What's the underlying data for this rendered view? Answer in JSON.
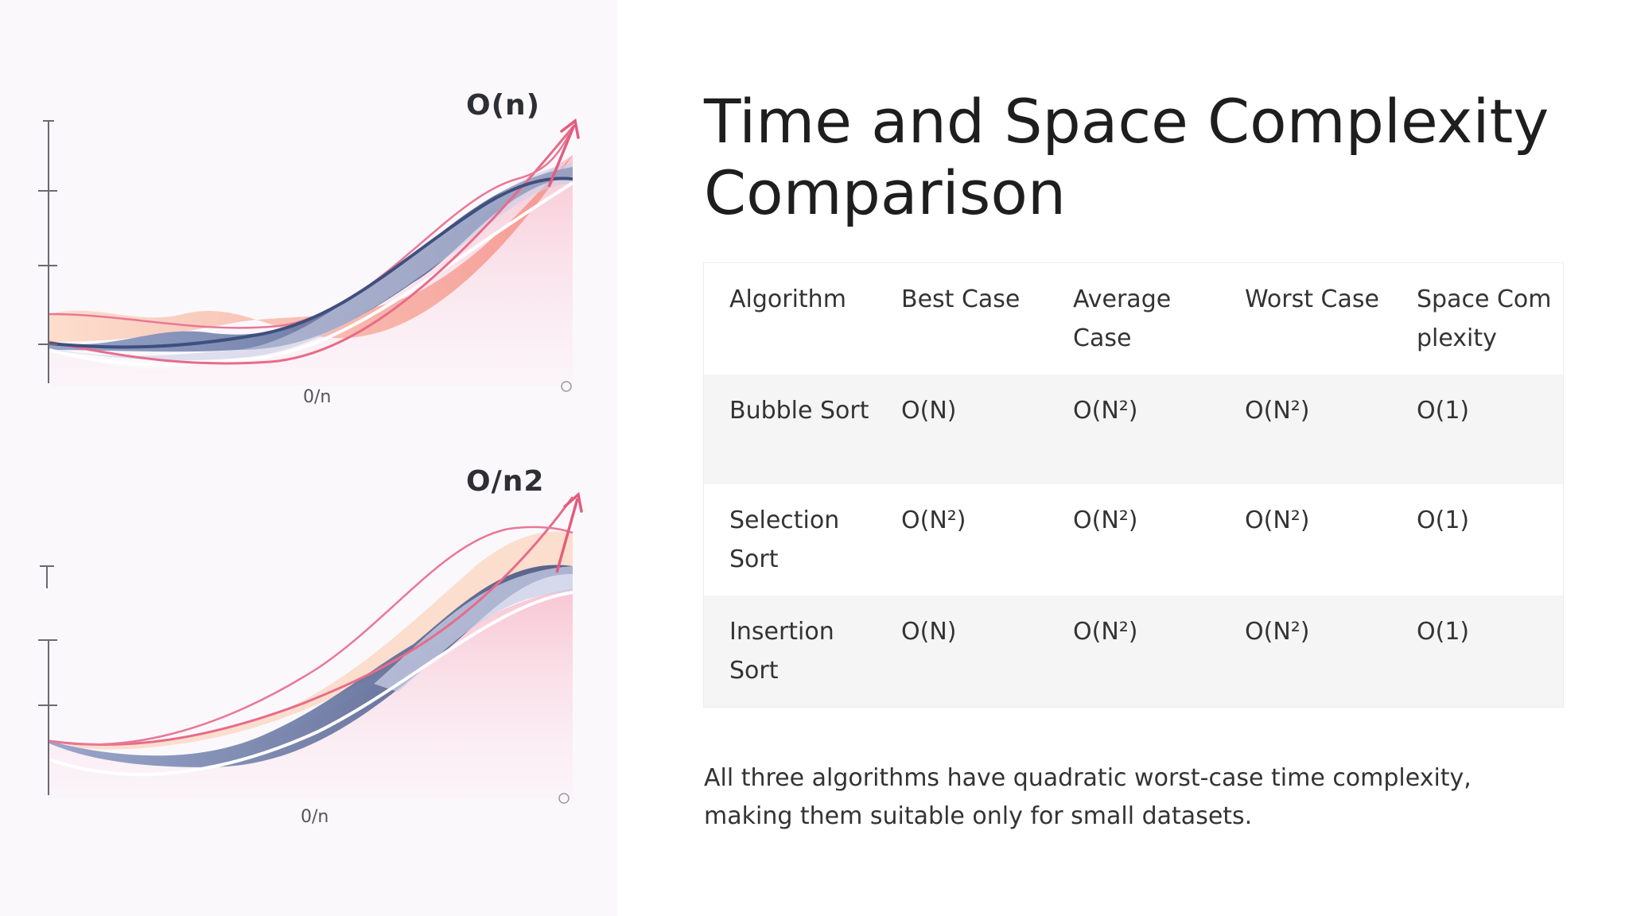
{
  "graphs": {
    "top": {
      "title": "O(n)",
      "xlabel": "0/n"
    },
    "bottom": {
      "title": "O/n2",
      "xlabel": "0/n"
    }
  },
  "slide": {
    "title": "Time and Space Complexity Comparison"
  },
  "table": {
    "headers": [
      "Algorithm",
      "Best Case",
      "Average Case",
      "Worst Case",
      "Space Complexity"
    ],
    "rows": [
      [
        "Bubble Sort",
        "O(N)",
        "O(N²)",
        "O(N²)",
        "O(1)"
      ],
      [
        "Selection Sort",
        "O(N²)",
        "O(N²)",
        "O(N²)",
        "O(1)"
      ],
      [
        "Insertion Sort",
        "O(N)",
        "O(N²)",
        "O(N²)",
        "O(1)"
      ]
    ]
  },
  "summary": "All three algorithms have quadratic worst-case time complexity, making them suitable only for small datasets.",
  "colors": {
    "navy": "#3f4f7e",
    "pink": "#e35d7d",
    "peach": "#f6b08f",
    "lavender": "#b9c2de"
  }
}
